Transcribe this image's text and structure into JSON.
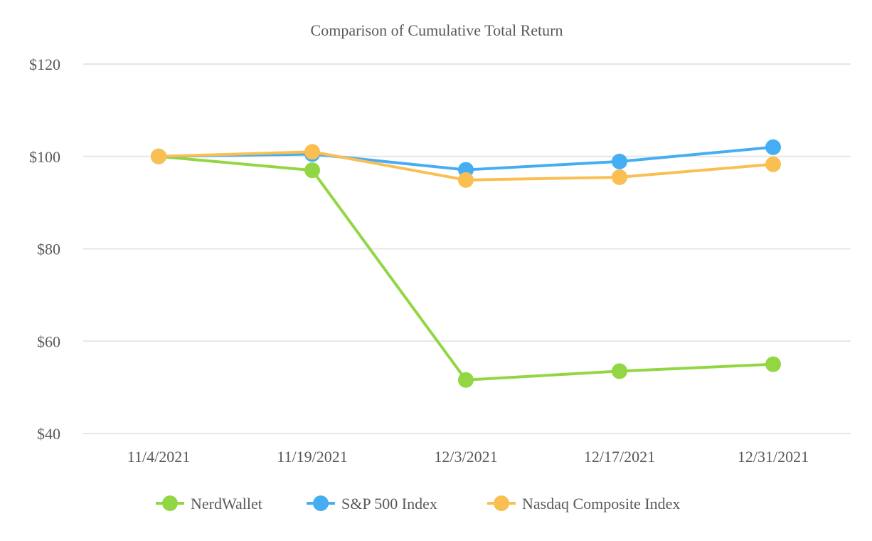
{
  "chart_data": {
    "type": "line",
    "title": "Comparison of Cumulative Total Return",
    "xlabel": "",
    "ylabel": "",
    "categories": [
      "11/4/2021",
      "11/19/2021",
      "12/3/2021",
      "12/17/2021",
      "12/31/2021"
    ],
    "y_tick_labels": [
      "$40",
      "$60",
      "$80",
      "$100",
      "$120"
    ],
    "y_ticks": [
      40,
      60,
      80,
      100,
      120
    ],
    "ylim": [
      40,
      120
    ],
    "grid": true,
    "legend_position": "bottom",
    "series": [
      {
        "name": "NerdWallet",
        "color": "#92d743",
        "values": [
          100.0,
          97.0,
          51.6,
          53.5,
          55.0
        ]
      },
      {
        "name": "S&P 500 Index",
        "color": "#45aef2",
        "values": [
          100.0,
          100.5,
          97.1,
          98.9,
          102.0
        ]
      },
      {
        "name": "Nasdaq Composite Index",
        "color": "#f9bf53",
        "values": [
          100.0,
          101.0,
          94.9,
          95.5,
          98.3
        ]
      }
    ]
  }
}
